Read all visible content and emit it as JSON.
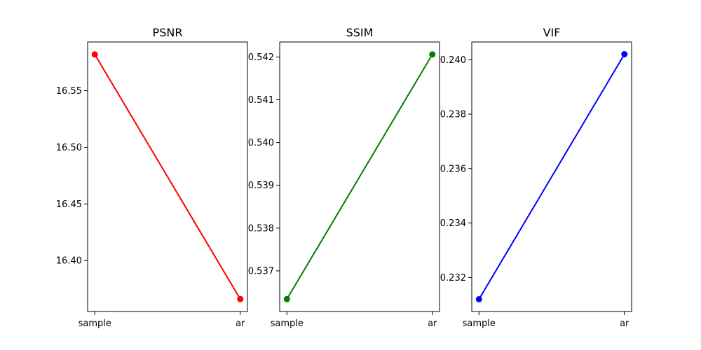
{
  "chart_data": [
    {
      "type": "line",
      "title": "PSNR",
      "categories": [
        "sample",
        "ar"
      ],
      "values": [
        16.582,
        16.366
      ],
      "color": "#ff0000",
      "ylim": [
        16.355,
        16.593
      ],
      "yticks": [
        {
          "value": 16.4,
          "label": "16.40"
        },
        {
          "value": 16.45,
          "label": "16.45"
        },
        {
          "value": 16.5,
          "label": "16.50"
        },
        {
          "value": 16.55,
          "label": "16.55"
        }
      ],
      "grid": false,
      "xlabel": "",
      "ylabel": ""
    },
    {
      "type": "line",
      "title": "SSIM",
      "categories": [
        "sample",
        "ar"
      ],
      "values": [
        0.53634,
        0.54206
      ],
      "color": "#008000",
      "ylim": [
        0.53605,
        0.54235
      ],
      "yticks": [
        {
          "value": 0.537,
          "label": "0.537"
        },
        {
          "value": 0.538,
          "label": "0.538"
        },
        {
          "value": 0.539,
          "label": "0.539"
        },
        {
          "value": 0.54,
          "label": "0.540"
        },
        {
          "value": 0.541,
          "label": "0.541"
        },
        {
          "value": 0.542,
          "label": "0.542"
        }
      ],
      "grid": false,
      "xlabel": "",
      "ylabel": ""
    },
    {
      "type": "line",
      "title": "VIF",
      "categories": [
        "sample",
        "ar"
      ],
      "values": [
        0.2312,
        0.2402
      ],
      "color": "#0000ff",
      "ylim": [
        0.23075,
        0.24065
      ],
      "yticks": [
        {
          "value": 0.232,
          "label": "0.232"
        },
        {
          "value": 0.234,
          "label": "0.234"
        },
        {
          "value": 0.236,
          "label": "0.236"
        },
        {
          "value": 0.238,
          "label": "0.238"
        },
        {
          "value": 0.24,
          "label": "0.240"
        }
      ],
      "grid": false,
      "xlabel": "",
      "ylabel": ""
    }
  ]
}
